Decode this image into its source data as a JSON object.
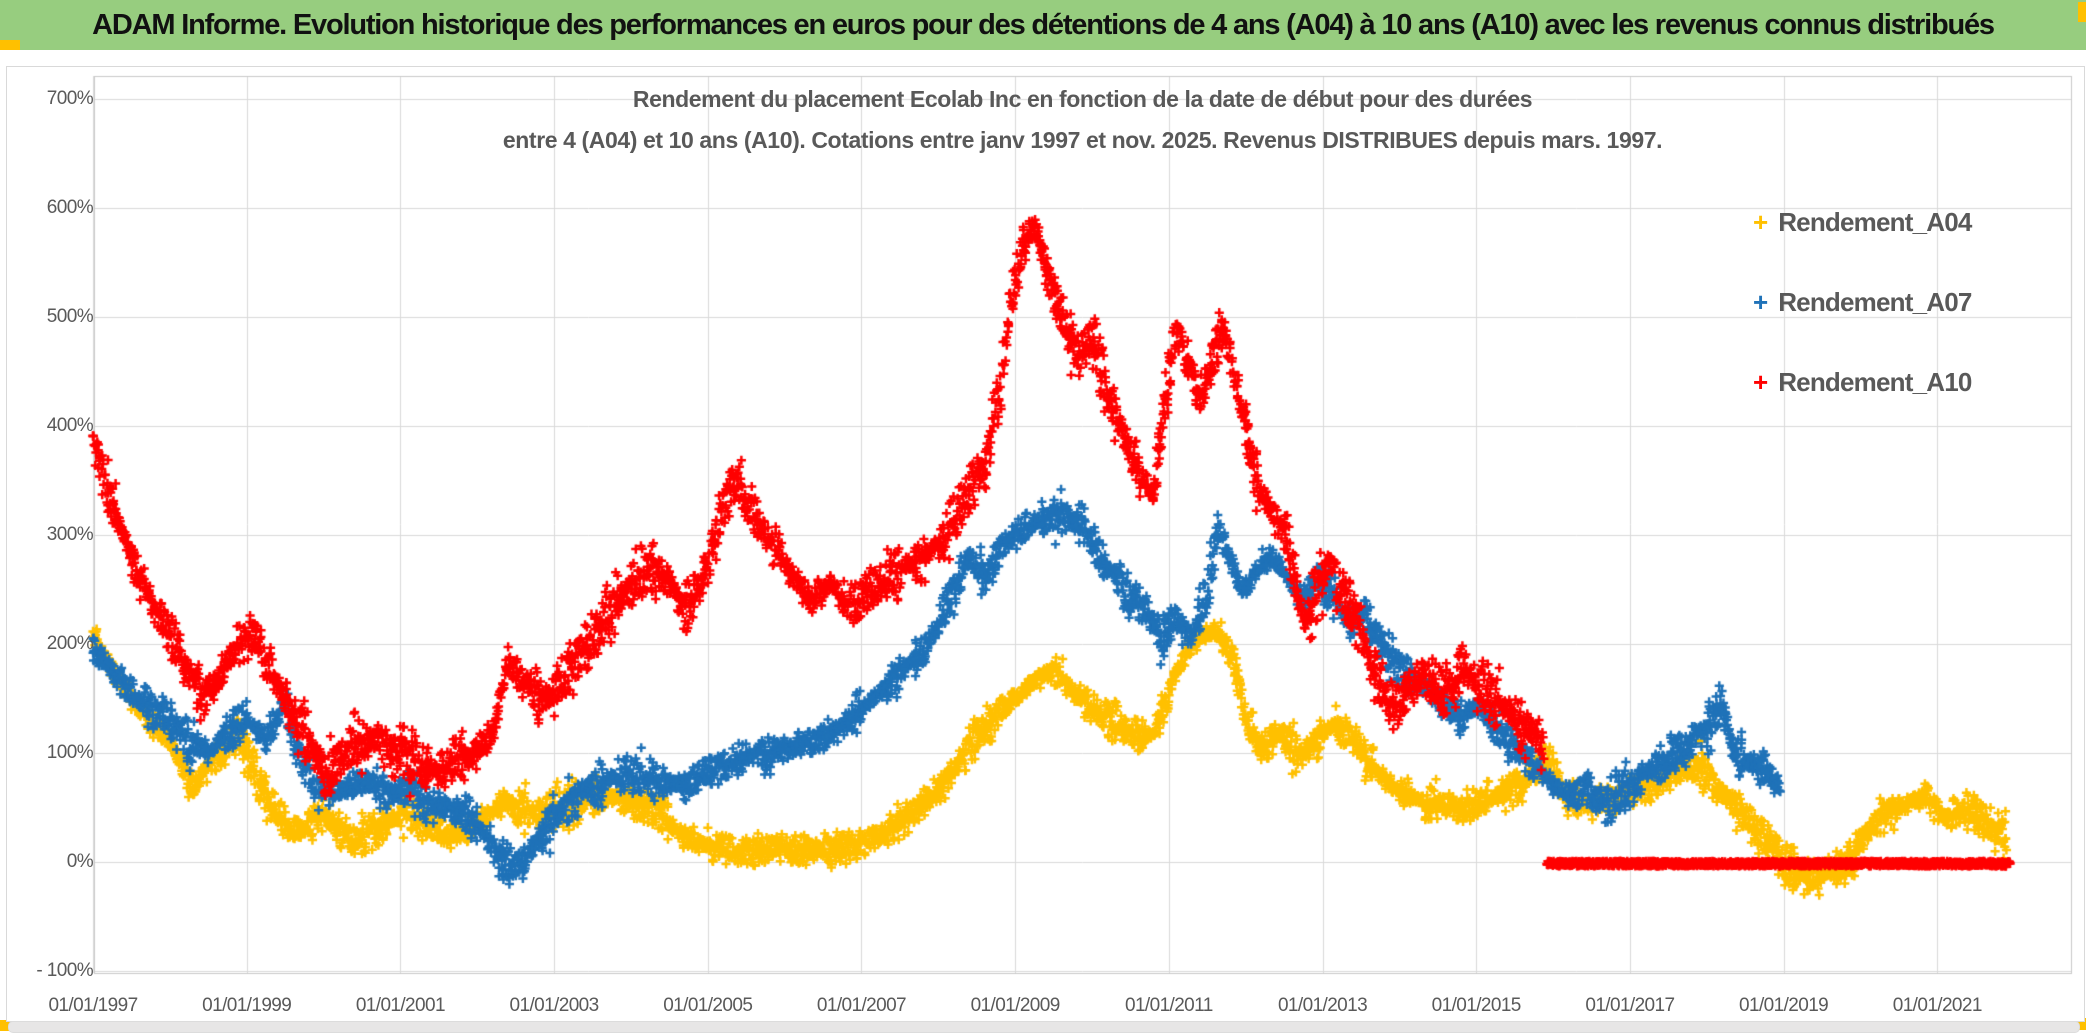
{
  "header": {
    "title": "ADAM Informe. Evolution historique des performances en euros pour des détentions de 4 ans (A04) à 10 ans (A10) avec les revenus connus distribués",
    "background_color": "#97CD7F",
    "accent_color": "#FFC000"
  },
  "chart": {
    "title_line1": "Rendement du placement Ecolab Inc en fonction de la date de début pour des durées",
    "title_line2": "entre 4 (A04) et 10 ans (A10). Cotations entre janv 1997 et nov. 2025. Revenus DISTRIBUES depuis mars. 1997.",
    "text_color": "#595959",
    "gridline_color": "#d9d9d9"
  },
  "chart_data": {
    "type": "scatter",
    "title": "Rendement du placement Ecolab Inc en fonction de la date de début pour des durées entre 4 (A04) et 10 ans (A10). Cotations entre janv 1997 et nov. 2025. Revenus DISTRIBUES depuis mars. 1997.",
    "marker": "plus",
    "grid": true,
    "legend_position": "right",
    "x_axis": {
      "tick_labels": [
        "01/01/1997",
        "01/01/1999",
        "01/01/2001",
        "01/01/2003",
        "01/01/2005",
        "01/01/2007",
        "01/01/2009",
        "01/01/2011",
        "01/01/2013",
        "01/01/2015",
        "01/01/2017",
        "01/01/2019",
        "01/01/2021"
      ],
      "tick_years": [
        1997,
        1999,
        2001,
        2003,
        2005,
        2007,
        2009,
        2011,
        2013,
        2015,
        2017,
        2019,
        2021
      ],
      "start_year": 1997.0,
      "end_year": 2022.74
    },
    "y_axis": {
      "tick_labels": [
        "700%",
        "600%",
        "500%",
        "400%",
        "300%",
        "200%",
        "100%",
        "0%",
        "- 100%"
      ],
      "tick_values": [
        700,
        600,
        500,
        400,
        300,
        200,
        100,
        0,
        -100
      ],
      "min": -100,
      "max": 700,
      "unit": "%"
    },
    "series": [
      {
        "name": "Rendement_A04",
        "color": "#FFC000",
        "seed": 11,
        "spread": 14,
        "points_per_year": 120,
        "keypoints": [
          [
            1997.0,
            210
          ],
          [
            1997.25,
            175
          ],
          [
            1997.5,
            150
          ],
          [
            1997.75,
            130
          ],
          [
            1998.0,
            112
          ],
          [
            1998.3,
            70
          ],
          [
            1998.6,
            95
          ],
          [
            1998.9,
            115
          ],
          [
            1999.1,
            85
          ],
          [
            1999.3,
            55
          ],
          [
            1999.55,
            28
          ],
          [
            1999.8,
            35
          ],
          [
            2000.0,
            45
          ],
          [
            2000.2,
            28
          ],
          [
            2000.45,
            20
          ],
          [
            2000.7,
            32
          ],
          [
            2000.9,
            40
          ],
          [
            2001.1,
            45
          ],
          [
            2001.35,
            32
          ],
          [
            2001.6,
            25
          ],
          [
            2001.85,
            30
          ],
          [
            2002.1,
            40
          ],
          [
            2002.35,
            55
          ],
          [
            2002.6,
            48
          ],
          [
            2002.85,
            44
          ],
          [
            2003.1,
            50
          ],
          [
            2003.4,
            56
          ],
          [
            2003.7,
            60
          ],
          [
            2004.0,
            55
          ],
          [
            2004.3,
            48
          ],
          [
            2004.6,
            30
          ],
          [
            2004.85,
            18
          ],
          [
            2005.1,
            12
          ],
          [
            2005.4,
            8
          ],
          [
            2005.7,
            10
          ],
          [
            2006.0,
            13
          ],
          [
            2006.3,
            10
          ],
          [
            2006.6,
            12
          ],
          [
            2006.9,
            15
          ],
          [
            2007.2,
            22
          ],
          [
            2007.5,
            35
          ],
          [
            2007.8,
            55
          ],
          [
            2008.1,
            75
          ],
          [
            2008.4,
            105
          ],
          [
            2008.7,
            130
          ],
          [
            2009.0,
            150
          ],
          [
            2009.25,
            168
          ],
          [
            2009.5,
            175
          ],
          [
            2009.75,
            158
          ],
          [
            2010.0,
            142
          ],
          [
            2010.3,
            128
          ],
          [
            2010.6,
            112
          ],
          [
            2010.85,
            122
          ],
          [
            2011.05,
            168
          ],
          [
            2011.3,
            200
          ],
          [
            2011.6,
            212
          ],
          [
            2011.85,
            188
          ],
          [
            2012.0,
            128
          ],
          [
            2012.2,
            105
          ],
          [
            2012.45,
            118
          ],
          [
            2012.7,
            96
          ],
          [
            2012.95,
            112
          ],
          [
            2013.15,
            128
          ],
          [
            2013.4,
            112
          ],
          [
            2013.65,
            88
          ],
          [
            2013.9,
            70
          ],
          [
            2014.2,
            58
          ],
          [
            2014.5,
            52
          ],
          [
            2014.8,
            50
          ],
          [
            2015.1,
            56
          ],
          [
            2015.4,
            65
          ],
          [
            2015.7,
            80
          ],
          [
            2015.95,
            92
          ],
          [
            2016.15,
            62
          ],
          [
            2016.45,
            52
          ],
          [
            2016.75,
            58
          ],
          [
            2017.0,
            62
          ],
          [
            2017.3,
            72
          ],
          [
            2017.6,
            82
          ],
          [
            2017.9,
            88
          ],
          [
            2018.1,
            72
          ],
          [
            2018.4,
            48
          ],
          [
            2018.7,
            25
          ],
          [
            2019.0,
            0
          ],
          [
            2019.3,
            -14
          ],
          [
            2019.6,
            -10
          ],
          [
            2019.9,
            2
          ],
          [
            2020.1,
            28
          ],
          [
            2020.35,
            45
          ],
          [
            2020.6,
            52
          ],
          [
            2020.85,
            60
          ],
          [
            2021.1,
            42
          ],
          [
            2021.35,
            50
          ],
          [
            2021.6,
            40
          ],
          [
            2021.9,
            20
          ]
        ]
      },
      {
        "name": "Rendement_A07",
        "color": "#1F72B8",
        "seed": 22,
        "spread": 14,
        "points_per_year": 120,
        "keypoints": [
          [
            1997.0,
            200
          ],
          [
            1997.25,
            175
          ],
          [
            1997.5,
            155
          ],
          [
            1997.75,
            140
          ],
          [
            1998.0,
            128
          ],
          [
            1998.25,
            108
          ],
          [
            1998.5,
            100
          ],
          [
            1998.75,
            118
          ],
          [
            1999.0,
            132
          ],
          [
            1999.25,
            112
          ],
          [
            1999.5,
            150
          ],
          [
            1999.65,
            100
          ],
          [
            1999.85,
            75
          ],
          [
            2000.1,
            60
          ],
          [
            2000.35,
            70
          ],
          [
            2000.6,
            75
          ],
          [
            2000.85,
            62
          ],
          [
            2001.1,
            66
          ],
          [
            2001.35,
            56
          ],
          [
            2001.6,
            50
          ],
          [
            2001.85,
            42
          ],
          [
            2002.05,
            30
          ],
          [
            2002.25,
            8
          ],
          [
            2002.45,
            -6
          ],
          [
            2002.65,
            6
          ],
          [
            2002.85,
            28
          ],
          [
            2003.1,
            48
          ],
          [
            2003.4,
            66
          ],
          [
            2003.7,
            76
          ],
          [
            2004.0,
            80
          ],
          [
            2004.3,
            76
          ],
          [
            2004.6,
            70
          ],
          [
            2004.9,
            78
          ],
          [
            2005.2,
            88
          ],
          [
            2005.5,
            96
          ],
          [
            2005.8,
            98
          ],
          [
            2006.1,
            105
          ],
          [
            2006.4,
            112
          ],
          [
            2006.7,
            122
          ],
          [
            2007.0,
            140
          ],
          [
            2007.3,
            160
          ],
          [
            2007.6,
            180
          ],
          [
            2007.9,
            205
          ],
          [
            2008.15,
            240
          ],
          [
            2008.4,
            280
          ],
          [
            2008.6,
            262
          ],
          [
            2008.8,
            285
          ],
          [
            2009.0,
            302
          ],
          [
            2009.3,
            312
          ],
          [
            2009.6,
            322
          ],
          [
            2009.9,
            305
          ],
          [
            2010.1,
            280
          ],
          [
            2010.4,
            252
          ],
          [
            2010.7,
            228
          ],
          [
            2010.9,
            208
          ],
          [
            2011.1,
            222
          ],
          [
            2011.3,
            205
          ],
          [
            2011.5,
            248
          ],
          [
            2011.65,
            305
          ],
          [
            2011.8,
            278
          ],
          [
            2011.95,
            248
          ],
          [
            2012.15,
            268
          ],
          [
            2012.35,
            282
          ],
          [
            2012.55,
            258
          ],
          [
            2012.75,
            240
          ],
          [
            2012.95,
            262
          ],
          [
            2013.15,
            242
          ],
          [
            2013.35,
            218
          ],
          [
            2013.55,
            228
          ],
          [
            2013.75,
            198
          ],
          [
            2013.95,
            182
          ],
          [
            2014.2,
            168
          ],
          [
            2014.5,
            148
          ],
          [
            2014.8,
            132
          ],
          [
            2015.05,
            142
          ],
          [
            2015.3,
            118
          ],
          [
            2015.6,
            98
          ],
          [
            2015.9,
            78
          ],
          [
            2016.15,
            62
          ],
          [
            2016.4,
            65
          ],
          [
            2016.7,
            55
          ],
          [
            2017.0,
            70
          ],
          [
            2017.3,
            85
          ],
          [
            2017.6,
            100
          ],
          [
            2017.9,
            116
          ],
          [
            2018.1,
            130
          ],
          [
            2018.2,
            148
          ],
          [
            2018.35,
            98
          ],
          [
            2018.55,
            92
          ],
          [
            2018.75,
            86
          ],
          [
            2018.95,
            66
          ]
        ]
      },
      {
        "name": "Rendement_A10",
        "color": "#FF0000",
        "seed": 33,
        "spread": 20,
        "points_per_year": 120,
        "keypoints": [
          [
            1997.0,
            385
          ],
          [
            1997.2,
            340
          ],
          [
            1997.4,
            300
          ],
          [
            1997.6,
            260
          ],
          [
            1997.8,
            230
          ],
          [
            1998.0,
            210
          ],
          [
            1998.2,
            180
          ],
          [
            1998.45,
            150
          ],
          [
            1998.7,
            175
          ],
          [
            1998.9,
            200
          ],
          [
            1999.1,
            212
          ],
          [
            1999.3,
            178
          ],
          [
            1999.5,
            148
          ],
          [
            1999.75,
            118
          ],
          [
            2000.0,
            85
          ],
          [
            2000.25,
            95
          ],
          [
            2000.5,
            110
          ],
          [
            2000.75,
            108
          ],
          [
            2001.0,
            98
          ],
          [
            2001.25,
            92
          ],
          [
            2001.5,
            85
          ],
          [
            2001.75,
            92
          ],
          [
            2002.0,
            102
          ],
          [
            2002.2,
            115
          ],
          [
            2002.4,
            185
          ],
          [
            2002.6,
            165
          ],
          [
            2002.8,
            150
          ],
          [
            2003.0,
            155
          ],
          [
            2003.3,
            185
          ],
          [
            2003.6,
            215
          ],
          [
            2003.9,
            245
          ],
          [
            2004.2,
            272
          ],
          [
            2004.5,
            258
          ],
          [
            2004.7,
            230
          ],
          [
            2004.9,
            250
          ],
          [
            2005.1,
            300
          ],
          [
            2005.35,
            350
          ],
          [
            2005.6,
            320
          ],
          [
            2005.85,
            290
          ],
          [
            2006.1,
            262
          ],
          [
            2006.35,
            240
          ],
          [
            2006.6,
            255
          ],
          [
            2006.85,
            235
          ],
          [
            2007.1,
            245
          ],
          [
            2007.35,
            262
          ],
          [
            2007.6,
            272
          ],
          [
            2007.85,
            282
          ],
          [
            2008.1,
            298
          ],
          [
            2008.35,
            335
          ],
          [
            2008.6,
            365
          ],
          [
            2008.8,
            430
          ],
          [
            2008.95,
            515
          ],
          [
            2009.1,
            565
          ],
          [
            2009.25,
            585
          ],
          [
            2009.4,
            545
          ],
          [
            2009.6,
            495
          ],
          [
            2009.8,
            465
          ],
          [
            2010.0,
            480
          ],
          [
            2010.2,
            430
          ],
          [
            2010.4,
            395
          ],
          [
            2010.6,
            360
          ],
          [
            2010.8,
            335
          ],
          [
            2010.95,
            425
          ],
          [
            2011.1,
            490
          ],
          [
            2011.25,
            458
          ],
          [
            2011.4,
            428
          ],
          [
            2011.55,
            455
          ],
          [
            2011.7,
            490
          ],
          [
            2011.85,
            450
          ],
          [
            2012.0,
            400
          ],
          [
            2012.15,
            345
          ],
          [
            2012.35,
            320
          ],
          [
            2012.55,
            295
          ],
          [
            2012.75,
            218
          ],
          [
            2012.95,
            252
          ],
          [
            2013.1,
            280
          ],
          [
            2013.3,
            240
          ],
          [
            2013.5,
            208
          ],
          [
            2013.7,
            165
          ],
          [
            2013.9,
            140
          ],
          [
            2014.1,
            158
          ],
          [
            2014.35,
            172
          ],
          [
            2014.6,
            155
          ],
          [
            2014.85,
            180
          ],
          [
            2015.1,
            158
          ],
          [
            2015.35,
            142
          ],
          [
            2015.6,
            128
          ],
          [
            2015.88,
            112
          ]
        ],
        "flat_segment": {
          "from": 2015.92,
          "to": 2021.95,
          "value": -1.5,
          "spread": 2.2,
          "points_per_year": 220
        }
      }
    ]
  }
}
